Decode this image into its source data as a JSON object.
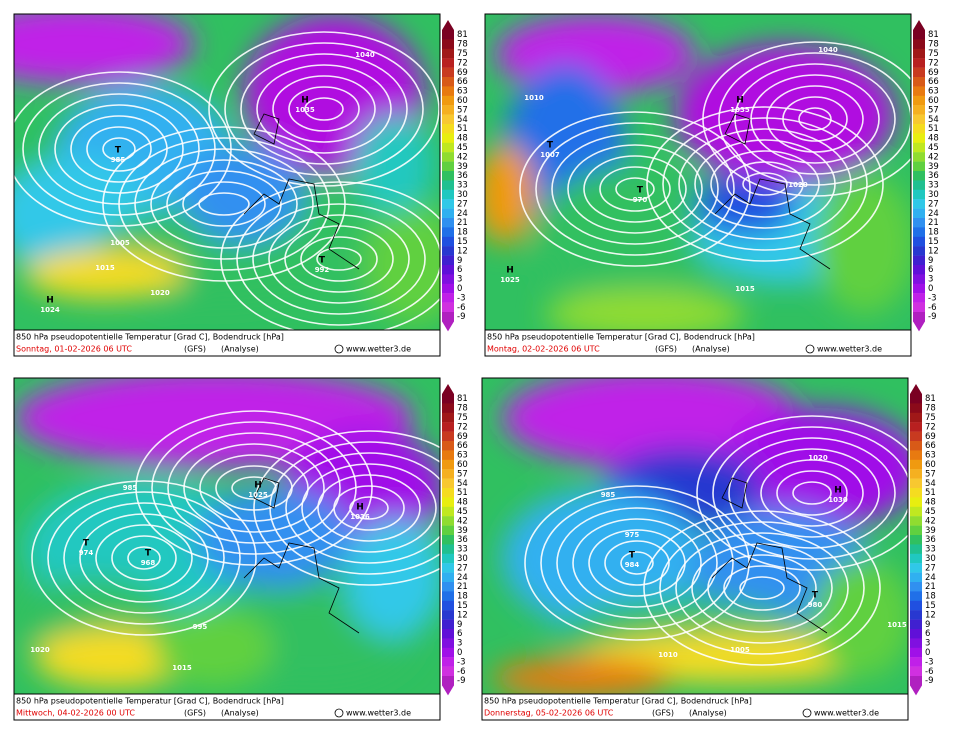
{
  "colorbar": {
    "levels": [
      81,
      78,
      75,
      72,
      69,
      66,
      63,
      60,
      57,
      54,
      51,
      48,
      45,
      42,
      39,
      36,
      33,
      30,
      27,
      24,
      21,
      18,
      15,
      12,
      9,
      6,
      3,
      0,
      -3,
      -6,
      -9
    ],
    "colors": [
      "#7a0022",
      "#8b0a1a",
      "#a01818",
      "#b82020",
      "#c83a20",
      "#d85a18",
      "#e87a10",
      "#f09a10",
      "#f5b020",
      "#f8c830",
      "#f5dc20",
      "#e8ee10",
      "#c0e820",
      "#90dc30",
      "#60d040",
      "#30c060",
      "#20c090",
      "#20c8c0",
      "#30c8e8",
      "#30b0f0",
      "#3090f0",
      "#2070e8",
      "#2050e0",
      "#2838d0",
      "#4020d0",
      "#6010d8",
      "#8010e0",
      "#a010e8",
      "#c020e8",
      "#d030e0",
      "#b020c0"
    ]
  },
  "panels": [
    {
      "title": "850 hPa pseudopotentielle Temperatur [Grad C], Bodendruck [hPa]",
      "date": "Sonntag, 01-02-2026  06 UTC",
      "model": "(GFS)",
      "run": "(Analyse)",
      "credit": "www.wetter3.de",
      "labels": [
        "H",
        "1024",
        "T",
        "985",
        "H",
        "1035",
        "T",
        "992",
        "1005",
        "1015",
        "1020",
        "1040"
      ]
    },
    {
      "title": "850 hPa pseudopotentielle Temperatur [Grad C], Bodendruck [hPa]",
      "date": "Montag, 02-02-2026  06 UTC",
      "model": "(GFS)",
      "run": "(Analyse)",
      "credit": "www.wetter3.de",
      "labels": [
        "H",
        "1035",
        "T",
        "970",
        "1020",
        "1010",
        "1015",
        "H",
        "1025",
        "T",
        "1007",
        "1040"
      ]
    },
    {
      "title": "850 hPa pseudopotentielle Temperatur [Grad C], Bodendruck [hPa]",
      "date": "Mittwoch, 04-02-2026  00 UTC",
      "model": "(GFS)",
      "run": "(Analyse)",
      "credit": "www.wetter3.de",
      "labels": [
        "T",
        "974",
        "T",
        "968",
        "H",
        "1036",
        "985",
        "995",
        "1020",
        "1015",
        "H",
        "1025"
      ]
    },
    {
      "title": "850 hPa pseudopotentielle Temperatur [Grad C], Bodendruck [hPa]",
      "date": "Donnerstag, 05-02-2026  06 UTC",
      "model": "(GFS)",
      "run": "(Analyse)",
      "credit": "www.wetter3.de",
      "labels": [
        "T",
        "984",
        "H",
        "1030",
        "T",
        "980",
        "975",
        "1010",
        "1005",
        "985",
        "1015",
        "1020"
      ]
    }
  ]
}
